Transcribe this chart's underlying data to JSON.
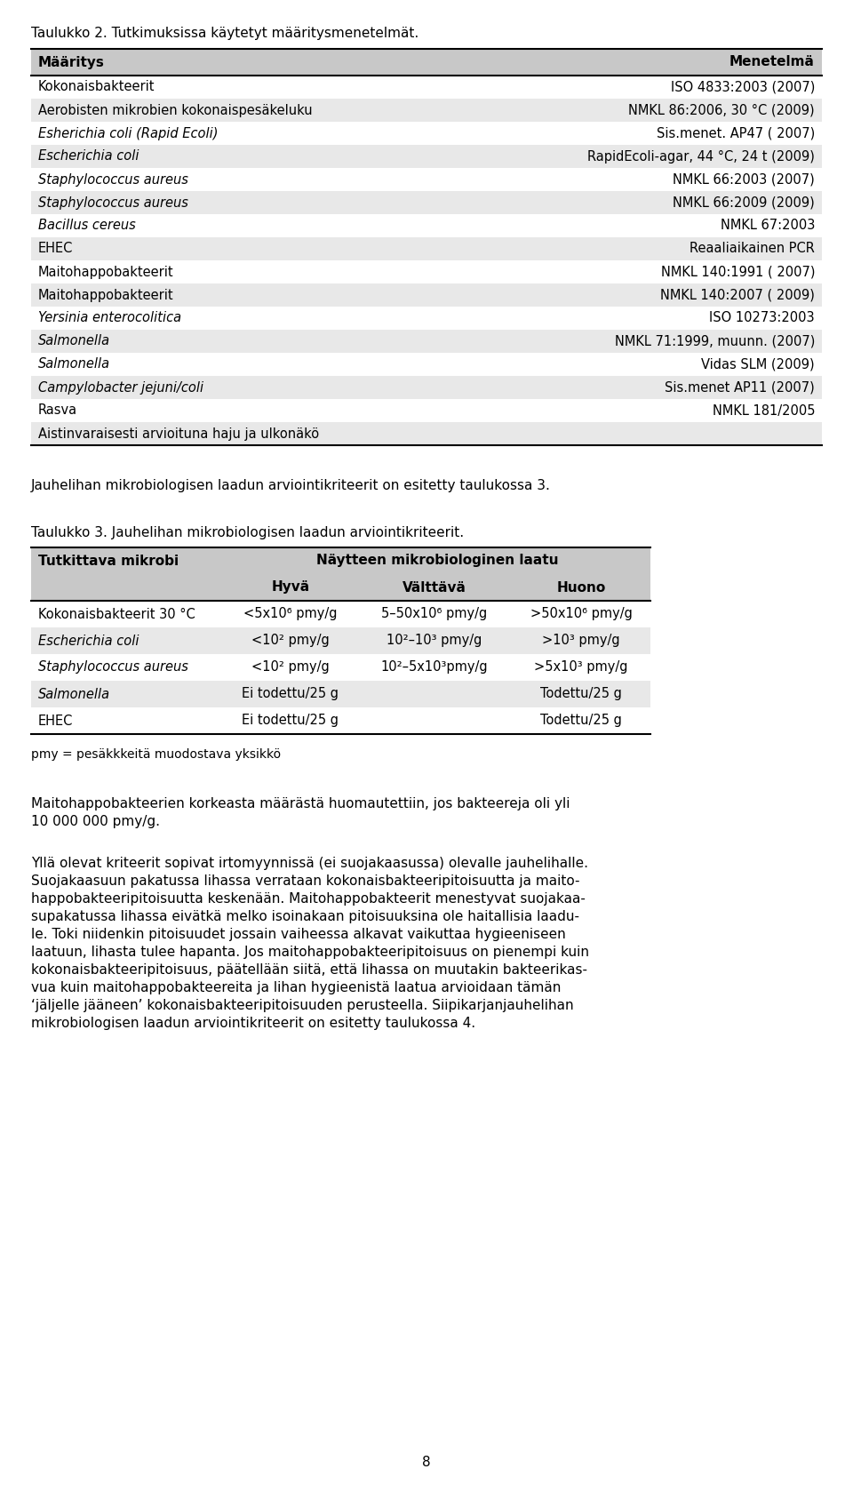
{
  "title1": "Taulukko 2. Tutkimuksissa käytetyt määritysmenetelmät.",
  "table1_header": [
    "Määritys",
    "Menetelmä"
  ],
  "table1_rows": [
    [
      "Kokonaisbakteerit",
      "ISO 4833:2003 (2007)",
      false
    ],
    [
      "Aerobisten mikrobien kokonaispesäkeluku",
      "NMKL 86:2006, 30 °C (2009)",
      false
    ],
    [
      "Esherichia coli (Rapid Ecoli)",
      "Sis.menet. AP47 ( 2007)",
      true
    ],
    [
      "Escherichia coli",
      "RapidEcoli-agar, 44 °C, 24 t (2009)",
      true
    ],
    [
      "Staphylococcus aureus",
      "NMKL 66:2003 (2007)",
      true
    ],
    [
      "Staphylococcus aureus",
      "NMKL 66:2009 (2009)",
      true
    ],
    [
      "Bacillus cereus",
      "NMKL 67:2003",
      true
    ],
    [
      "EHEC",
      "Reaaliaikainen PCR",
      false
    ],
    [
      "Maitohappobakteerit",
      "NMKL 140:1991 ( 2007)",
      false
    ],
    [
      "Maitohappobakteerit",
      "NMKL 140:2007 ( 2009)",
      false
    ],
    [
      "Yersinia enterocolitica",
      "ISO 10273:2003",
      true
    ],
    [
      "Salmonella",
      "NMKL 71:1999, muunn. (2007)",
      true
    ],
    [
      "Salmonella",
      "Vidas SLM (2009)",
      true
    ],
    [
      "Campylobacter jejuni/coli",
      "Sis.menet AP11 (2007)",
      true
    ],
    [
      "Rasva",
      "NMKL 181/2005",
      false
    ],
    [
      "Aistinvaraisesti arvioituna haju ja ulkonäkö",
      "",
      false
    ]
  ],
  "para1": "Jauhelihan mikrobiologisen laadun arviointikriteerit on esitetty taulukossa 3.",
  "title2": "Taulukko 3. Jauhelihan mikrobiologisen laadun arviointikriteerit.",
  "table2_header1_col1": "Tutkittava mikrobi",
  "table2_header1_col2": "Näytteen mikrobiologinen laatu",
  "table2_subheaders": [
    "Hyvä",
    "Välttävä",
    "Huono"
  ],
  "table2_rows": [
    [
      "Kokonaisbakteerit 30 °C",
      "<5x10⁶ pmy/g",
      "5–50x10⁶ pmy/g",
      ">50x10⁶ pmy/g",
      false
    ],
    [
      "Escherichia coli",
      "<10² pmy/g",
      "10²–10³ pmy/g",
      ">10³ pmy/g",
      true
    ],
    [
      "Staphylococcus aureus",
      "<10² pmy/g",
      "10²–5x10³pmy/g",
      ">5x10³ pmy/g",
      true
    ],
    [
      "Salmonella",
      "Ei todettu/25 g",
      "",
      "Todettu/25 g",
      true
    ],
    [
      "EHEC",
      "Ei todettu/25 g",
      "",
      "Todettu/25 g",
      false
    ]
  ],
  "table2_note": "pmy = pesäkkkeitä muodostava yksikkö",
  "para2_line1": "Maitohappobakteerien korkeasta määrästä huomautettiin, jos bakteereja oli yli",
  "para2_line2": "10 000 000 pmy/g.",
  "para3_lines": [
    "Yllä olevat kriteerit sopivat irtomyynnissä (ei suojakaasussa) olevalle jauhelihalle.",
    "Suojakaasuun pakatussa lihassa verrataan kokonaisbakteeripitoisuutta ja maito-",
    "happobakteeripitoisuutta keskenään. Maitohappobakteerit menestyvat suojakaa-",
    "supakatussa lihassa eivätkä melko isoinakaan pitoisuuksina ole haitallisia laadu-",
    "le. Toki niidenkin pitoisuudet jossain vaiheessa alkavat vaikuttaa hygieeniseen",
    "laatuun, lihasta tulee hapanta. Jos maitohappobakteeripitoisuus on pienempi kuin",
    "kokonaisbakteeripitoisuus, päätellään siitä, että lihassa on muutakin bakteerikas-",
    "vua kuin maitohappobakteereita ja lihan hygieenistä laatua arvioidaan tämän",
    "‘jäljelle jääneen’ kokonaisbakteeripitoisuuden perusteella. Siipikarjanjauhelihan",
    "mikrobiologisen laadun arviointikriteerit on esitetty taulukossa 4."
  ],
  "page_num": "8",
  "bg_color": "#ffffff",
  "text_color": "#000000",
  "header_bg": "#c8c8c8",
  "row_bg_shaded": "#e8e8e8",
  "row_bg_white": "#ffffff",
  "border_color": "#000000"
}
